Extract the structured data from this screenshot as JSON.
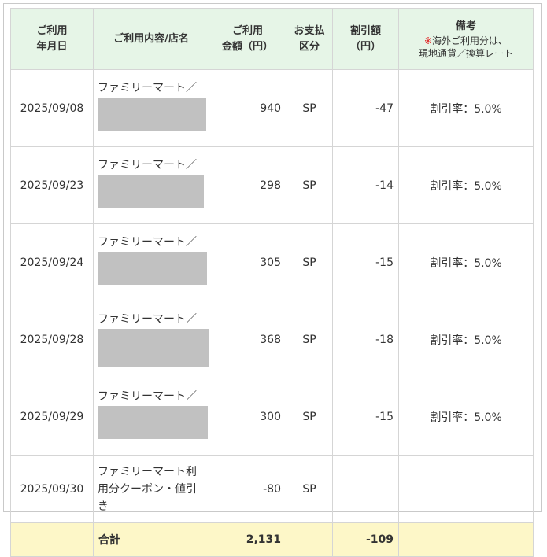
{
  "headers": {
    "date": [
      "ご利用",
      "年月日"
    ],
    "store": "ご利用内容/店名",
    "amount": [
      "ご利用",
      "金額（円）"
    ],
    "payment": [
      "お支払",
      "区分"
    ],
    "discount": [
      "割引額",
      "（円）"
    ],
    "memo": {
      "title": "備考",
      "note_mark": "※",
      "note_line1": "海外ご利用分は、",
      "note_line2": "現地通貨／換算レート"
    }
  },
  "rows": [
    {
      "date": "2025/09/08",
      "store": "ファミリーマート／",
      "redacted": true,
      "amount": "940",
      "payment": "SP",
      "discount": "-47",
      "memo": "割引率：5.0%"
    },
    {
      "date": "2025/09/23",
      "store": "ファミリーマート／",
      "redacted": true,
      "amount": "298",
      "payment": "SP",
      "discount": "-14",
      "memo": "割引率：5.0%"
    },
    {
      "date": "2025/09/24",
      "store": "ファミリーマート／",
      "redacted": true,
      "amount": "305",
      "payment": "SP",
      "discount": "-15",
      "memo": "割引率：5.0%"
    },
    {
      "date": "2025/09/28",
      "store": "ファミリーマート／",
      "redacted": true,
      "amount": "368",
      "payment": "SP",
      "discount": "-18",
      "memo": "割引率：5.0%"
    },
    {
      "date": "2025/09/29",
      "store": "ファミリーマート／",
      "redacted": true,
      "amount": "300",
      "payment": "SP",
      "discount": "-15",
      "memo": "割引率：5.0%"
    },
    {
      "date": "2025/09/30",
      "store": "ファミリーマート利用分クーポン・値引き",
      "redacted": false,
      "amount": "-80",
      "payment": "SP",
      "discount": "",
      "memo": ""
    }
  ],
  "total": {
    "label": "合計",
    "amount": "2,131",
    "discount": "-109"
  },
  "colors": {
    "header_bg": "#e6f5e7",
    "total_bg": "#fdf7c8",
    "redaction": "#c1c1c1",
    "note_mark": "#e02020"
  }
}
